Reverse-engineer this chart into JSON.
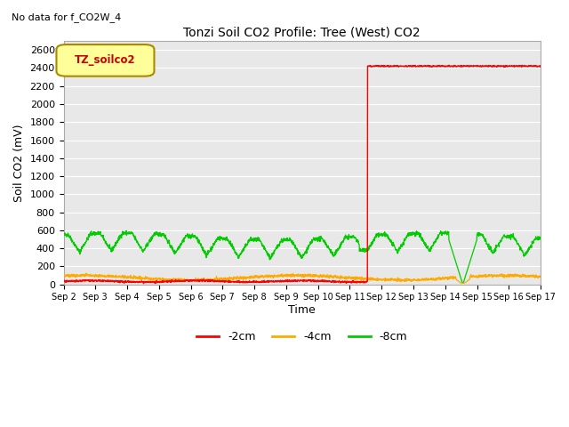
{
  "title": "Tonzi Soil CO2 Profile: Tree (West) CO2",
  "no_data_text": "No data for f_CO2W_4",
  "ylabel": "Soil CO2 (mV)",
  "xlabel": "Time",
  "legend_box_label": "TZ_soilco2",
  "ylim": [
    0,
    2700
  ],
  "yticks": [
    0,
    200,
    400,
    600,
    800,
    1000,
    1200,
    1400,
    1600,
    1800,
    2000,
    2200,
    2400,
    2600
  ],
  "xtick_labels": [
    "Sep 2",
    "Sep 3",
    "Sep 4",
    "Sep 5",
    "Sep 6",
    "Sep 7",
    "Sep 8",
    "Sep 9",
    "Sep 10",
    "Sep 11",
    "Sep 12",
    "Sep 13",
    "Sep 14",
    "Sep 15",
    "Sep 16",
    "Sep 17"
  ],
  "colors": {
    "red_line": "#ff0000",
    "orange_line": "#ffaa00",
    "green_line": "#00cc00",
    "background": "#e8e8e8",
    "legend_box_bg": "#ffff99",
    "legend_box_border": "#cccc00",
    "grid": "#ffffff"
  },
  "legend_entries": [
    {
      "label": "-2cm",
      "color": "#ff0000"
    },
    {
      "label": "-4cm",
      "color": "#ffaa00"
    },
    {
      "label": "-8cm",
      "color": "#00cc00"
    }
  ],
  "spike_day": 9.55,
  "spike_value": 2420,
  "n_days": 15,
  "green_base_high": 560,
  "green_base_low": 350,
  "orange_base": 75,
  "red_base": 35
}
